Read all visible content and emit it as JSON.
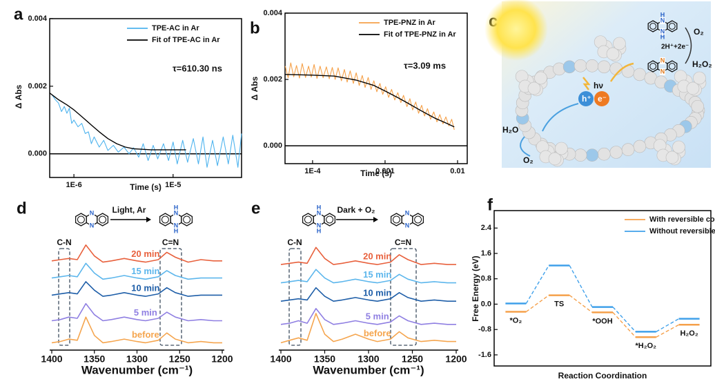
{
  "panel_labels": [
    "a",
    "b",
    "c",
    "d",
    "e",
    "f"
  ],
  "atoms": {
    "n": "N",
    "h": "H"
  },
  "scheme_c": {
    "light": "hν",
    "hole": "h⁺",
    "electron": "e⁻",
    "water": "H₂O",
    "oxygen": "O₂",
    "protons": "2H⁺+2e⁻",
    "h2o2": "H₂O₂"
  },
  "scheme_d": {
    "condition": "Light, Ar"
  },
  "scheme_e": {
    "condition": "Dark + O₂"
  },
  "chart_data": [
    {
      "type": "line",
      "xscale": "log",
      "frame": true,
      "zero_line": true,
      "legend": "upper right",
      "xlabel": "Time (s)",
      "ylabel": "Δ Abs",
      "annotation": "τ=610.30 ns",
      "xlim": [
        5.7e-07,
        4.9e-05
      ],
      "xticks": [
        {
          "value": 1e-06,
          "label": "1E-6"
        },
        {
          "value": 1e-05,
          "label": "1E-5"
        }
      ],
      "ylim": [
        -0.0007,
        0.004
      ],
      "yticks": [
        {
          "value": 0,
          "label": "0.000"
        },
        {
          "value": 0.002,
          "label": "0.002"
        },
        {
          "value": 0.004,
          "label": "0.004"
        }
      ],
      "series": [
        {
          "name": "TPE-AC in Ar",
          "color": "#4db3ee",
          "x": [
            6e-07,
            6.5e-07,
            7e-07,
            7.5e-07,
            8e-07,
            8.5e-07,
            9e-07,
            9.5e-07,
            1e-06,
            1.1e-06,
            1.2e-06,
            1.3e-06,
            1.4e-06,
            1.5e-06,
            1.6e-06,
            1.8e-06,
            2e-06,
            2.2e-06,
            2.5e-06,
            2.8e-06,
            3.2e-06,
            3.6e-06,
            4e-06,
            4.5e-06,
            5e-06,
            5.6e-06,
            6.3e-06,
            7e-06,
            8e-06,
            9e-06,
            1e-05,
            1.1e-05,
            1.25e-05,
            1.4e-05,
            1.6e-05,
            1.8e-05,
            2e-05,
            2.2e-05,
            2.5e-05,
            2.8e-05,
            3.2e-05,
            3.6e-05,
            4e-05,
            4.5e-05,
            4.9e-05
          ],
          "values": [
            0.00175,
            0.0016,
            0.0015,
            0.00125,
            0.0014,
            0.0012,
            0.00135,
            0.0009,
            0.001,
            0.0008,
            0.0009,
            0.0006,
            0.00065,
            0.0003,
            0.0005,
            0.0002,
            0.0004,
            0.0001,
            0.00025,
            5e-05,
            0.0002,
            0,
            0.00018,
            -0.0001,
            0.0003,
            -0.0002,
            0.00025,
            -0.00015,
            0.0003,
            -0.0002,
            0.00035,
            -0.0003,
            0.0004,
            -0.00025,
            0.00045,
            -0.0003,
            0.0005,
            -0.0004,
            0.0004,
            -0.00035,
            0.0005,
            -0.0003,
            0.00055,
            -0.0004,
            0.0006
          ]
        },
        {
          "name": "Fit of TPE-AC in Ar",
          "color": "#000000",
          "x": [
            5.7e-07,
            7e-07,
            8.5e-07,
            1e-06,
            1.2e-06,
            1.5e-06,
            1.8e-06,
            2.2e-06,
            2.7e-06,
            3.3e-06,
            4e-06,
            6e-06,
            1e-05,
            1.35e-05
          ],
          "values": [
            0.0018,
            0.0016,
            0.00145,
            0.0013,
            0.0011,
            0.00085,
            0.00065,
            0.00045,
            0.0003,
            0.0002,
            0.00015,
            0.00012,
            0.00012,
            0.00012
          ]
        }
      ]
    },
    {
      "type": "line",
      "xscale": "log",
      "frame": true,
      "zero_line": true,
      "legend": "upper right",
      "xlabel": "Time (s)",
      "ylabel": "Δ Abs",
      "annotation": "τ=3.09 ms",
      "xlim": [
        4.17e-05,
        0.0136
      ],
      "xticks": [
        {
          "value": 0.0001,
          "label": "1E-4"
        },
        0.001,
        0.01
      ],
      "ylim": [
        -0.00054,
        0.004
      ],
      "yticks": [
        {
          "value": 0,
          "label": "0.000"
        },
        {
          "value": 0.002,
          "label": "0.002"
        },
        {
          "value": 0.004,
          "label": "0.004"
        }
      ],
      "series": [
        {
          "name": "TPE-PNZ in Ar",
          "color": "#f5a14a",
          "x": [
            4.2e-05,
            4.6e-05,
            5e-05,
            5.5e-05,
            6e-05,
            6.6e-05,
            7.2e-05,
            8e-05,
            8.8e-05,
            9.6e-05,
            0.000105,
            0.000115,
            0.000127,
            0.00014,
            0.000155,
            0.00017,
            0.000187,
            0.000205,
            0.000225,
            0.00025,
            0.000275,
            0.0003,
            0.00033,
            0.000365,
            0.0004,
            0.00044,
            0.000485,
            0.00053,
            0.000585,
            0.00064,
            0.0007,
            0.00077,
            0.00085,
            0.00093,
            0.00102,
            0.00112,
            0.00123,
            0.00136,
            0.0015,
            0.00165,
            0.0018,
            0.002,
            0.0022,
            0.0024,
            0.00265,
            0.0029,
            0.0032,
            0.0035,
            0.00385,
            0.00425,
            0.0047,
            0.0052,
            0.0057,
            0.0063,
            0.0069,
            0.0076,
            0.0083,
            0.009
          ],
          "values": [
            0.0024,
            0.00205,
            0.0025,
            0.00208,
            0.00242,
            0.00204,
            0.00248,
            0.00206,
            0.0024,
            0.00207,
            0.00245,
            0.00203,
            0.0024,
            0.00205,
            0.00238,
            0.00202,
            0.00236,
            0.002,
            0.00235,
            0.00196,
            0.0023,
            0.00192,
            0.00226,
            0.00188,
            0.0022,
            0.00182,
            0.00212,
            0.00176,
            0.00206,
            0.0017,
            0.00196,
            0.00163,
            0.00188,
            0.00155,
            0.00178,
            0.00146,
            0.0017,
            0.00138,
            0.0016,
            0.0013,
            0.00152,
            0.00118,
            0.00142,
            0.00108,
            0.00132,
            0.00098,
            0.00122,
            0.0009,
            0.00112,
            0.0008,
            0.00102,
            0.00072,
            0.00094,
            0.00066,
            0.00087,
            0.0006,
            0.0008,
            0.00048
          ]
        },
        {
          "name": "Fit of TPE-PNZ in Ar",
          "color": "#000000",
          "x": [
            4.2e-05,
            0.0001,
            0.0002,
            0.0004,
            0.0007,
            0.001,
            0.0015,
            0.002,
            0.003,
            0.004,
            0.005,
            0.007,
            0.009
          ],
          "values": [
            0.00215,
            0.00213,
            0.0021,
            0.00198,
            0.00182,
            0.00165,
            0.00145,
            0.0013,
            0.00108,
            0.00093,
            0.00082,
            0.00068,
            0.00057
          ]
        }
      ]
    },
    {
      "type": "line",
      "frame": false,
      "series_labels": "inline",
      "xlabel": "Wavenumber (cm⁻¹)",
      "annotations": [
        "C-N",
        "C=N"
      ],
      "xlim": [
        1400,
        1200
      ],
      "xticks": [
        1400,
        1350,
        1300,
        1250,
        1200
      ],
      "ylim": [
        0,
        100
      ],
      "x": [
        1400,
        1390,
        1380,
        1370,
        1360,
        1350,
        1340,
        1330,
        1315,
        1300,
        1290,
        1275,
        1265,
        1255,
        1240,
        1225,
        1210,
        1200
      ],
      "series": [
        {
          "name": "20 min",
          "color": "#e8603c",
          "values": [
            73,
            74,
            75,
            74,
            86,
            77,
            72,
            73,
            75,
            73,
            72,
            74,
            80,
            76,
            72,
            74,
            73,
            73
          ]
        },
        {
          "name": "15 min",
          "color": "#5cb6ec",
          "values": [
            59,
            60,
            61,
            60,
            71,
            63,
            58,
            59,
            61,
            59,
            58,
            60,
            65,
            61,
            58,
            59,
            59,
            59
          ]
        },
        {
          "name": "10 min",
          "color": "#1e5ea8",
          "values": [
            45,
            46,
            47,
            46,
            56,
            49,
            44,
            45,
            47,
            45,
            44,
            46,
            51,
            47,
            44,
            45,
            45,
            45
          ]
        },
        {
          "name": "5 min",
          "color": "#8f7fe2",
          "values": [
            24,
            25,
            27,
            26,
            38,
            29,
            24,
            25,
            27,
            25,
            24,
            26,
            31,
            27,
            24,
            25,
            24,
            24
          ]
        },
        {
          "name": "before",
          "color": "#f5a54e",
          "values": [
            6,
            7,
            9,
            8,
            27,
            12,
            6,
            7,
            9,
            7,
            6,
            8,
            14,
            9,
            6,
            7,
            6,
            6
          ]
        }
      ]
    },
    {
      "type": "line",
      "frame": false,
      "series_labels": "inline",
      "xlabel": "Wavenumber (cm⁻¹)",
      "annotations": [
        "C-N",
        "C=N"
      ],
      "xlim": [
        1400,
        1200
      ],
      "xticks": [
        1400,
        1350,
        1300,
        1250,
        1200
      ],
      "ylim": [
        0,
        100
      ],
      "x": [
        1400,
        1390,
        1380,
        1370,
        1360,
        1350,
        1340,
        1330,
        1315,
        1300,
        1290,
        1275,
        1265,
        1255,
        1240,
        1225,
        1210,
        1200
      ],
      "series": [
        {
          "name": "20 min",
          "color": "#e8603c",
          "values": [
            70,
            71,
            72,
            71,
            84,
            75,
            70,
            71,
            73,
            71,
            70,
            72,
            78,
            74,
            70,
            71,
            70,
            70
          ]
        },
        {
          "name": "15 min",
          "color": "#5cb6ec",
          "values": [
            55,
            56,
            57,
            56,
            66,
            59,
            55,
            56,
            58,
            56,
            55,
            57,
            62,
            58,
            55,
            56,
            55,
            55
          ]
        },
        {
          "name": "10 min",
          "color": "#1e5ea8",
          "values": [
            40,
            41,
            42,
            41,
            51,
            44,
            40,
            41,
            43,
            41,
            40,
            42,
            47,
            43,
            40,
            41,
            40,
            40
          ]
        },
        {
          "name": "5 min",
          "color": "#8f7fe2",
          "values": [
            21,
            22,
            24,
            22,
            34,
            25,
            21,
            22,
            24,
            22,
            21,
            23,
            28,
            24,
            21,
            22,
            21,
            21
          ]
        },
        {
          "name": "before",
          "color": "#f5a54e",
          "values": [
            6,
            8,
            10,
            8,
            30,
            13,
            7,
            9,
            13,
            9,
            7,
            9,
            15,
            10,
            7,
            8,
            7,
            7
          ]
        }
      ]
    },
    {
      "type": "energy",
      "frame": true,
      "legend": "upper right",
      "xlabel": "Reaction Coordination",
      "ylabel": "Free Energy (eV)",
      "categories": [
        "*O₂",
        "TS",
        "*OOH",
        "*H₂O₂",
        "H₂O₂"
      ],
      "ylim": [
        -1.95,
        2.95
      ],
      "yticks": [
        -1.6,
        -0.8,
        {
          "value": 0,
          "label": "0.0"
        },
        0.8,
        1.6,
        2.4
      ],
      "series": [
        {
          "name": "With reversible conversion",
          "color": "#f5a04a",
          "values": [
            -0.24,
            0.28,
            -0.26,
            -1.04,
            -0.65
          ]
        },
        {
          "name": "Without reversible conversion",
          "color": "#3fa0ea",
          "values": [
            0.02,
            1.22,
            -0.09,
            -0.87,
            -0.46
          ]
        }
      ]
    }
  ]
}
